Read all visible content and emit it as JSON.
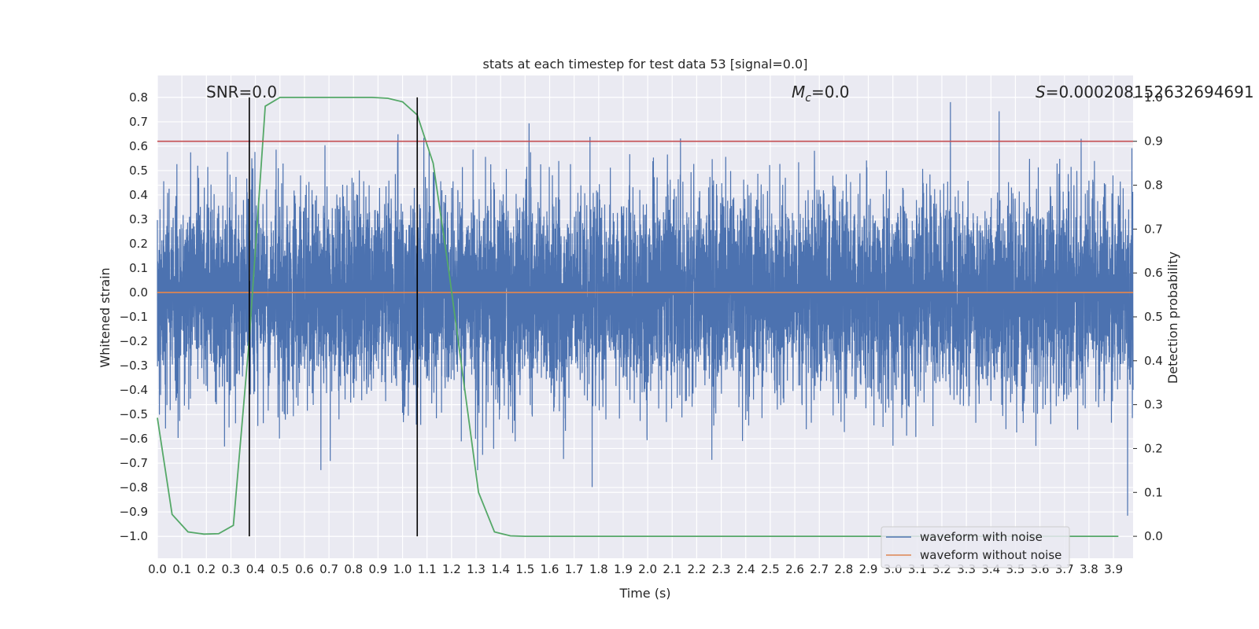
{
  "chart_data": {
    "type": "line",
    "title": "stats at each timestep for test data 53 [signal=0.0]",
    "xlabel": "Time (s)",
    "ylabel": "Whitened strain",
    "y2label": "Detection probability",
    "xlim": [
      0.0,
      3.98
    ],
    "ylim": [
      -1.09,
      0.89
    ],
    "y2lim": [
      -0.05,
      1.05
    ],
    "x_ticks": [
      "0.0",
      "0.1",
      "0.2",
      "0.3",
      "0.4",
      "0.5",
      "0.6",
      "0.7",
      "0.8",
      "0.9",
      "1.0",
      "1.1",
      "1.2",
      "1.3",
      "1.4",
      "1.5",
      "1.6",
      "1.7",
      "1.8",
      "1.9",
      "2.0",
      "2.1",
      "2.2",
      "2.3",
      "2.4",
      "2.5",
      "2.6",
      "2.7",
      "2.8",
      "2.9",
      "3.0",
      "3.1",
      "3.2",
      "3.3",
      "3.4",
      "3.5",
      "3.6",
      "3.7",
      "3.8",
      "3.9"
    ],
    "y_ticks": [
      "0.8",
      "0.7",
      "0.6",
      "0.5",
      "0.4",
      "0.3",
      "0.2",
      "0.1",
      "0.0",
      "−0.1",
      "−0.2",
      "−0.3",
      "−0.4",
      "−0.5",
      "−0.6",
      "−0.7",
      "−0.8",
      "−0.9",
      "−1.0"
    ],
    "y2_ticks": [
      "1.0",
      "0.9",
      "0.8",
      "0.7",
      "0.6",
      "0.5",
      "0.4",
      "0.3",
      "0.2",
      "0.1",
      "0.0"
    ],
    "grid": true,
    "legend_position": "lower-right",
    "legend": [
      "waveform with noise",
      "waveform without noise"
    ],
    "annotations": {
      "snr": "SNR=0.0",
      "mc_symbol": "M",
      "mc_sub": "c",
      "mc_value": "=0.0",
      "s_symbol": "S",
      "s_value": "=0.000208152632694691"
    },
    "series": [
      {
        "name": "waveform with noise",
        "color": "#4c72b0",
        "style": "noise",
        "sample_rate": 2048,
        "amplitude_sd": 0.21,
        "clip": [
          -1.0,
          0.8
        ]
      },
      {
        "name": "waveform without noise",
        "color": "#dd8452",
        "values_x": [
          0.0,
          3.98
        ],
        "values_y": [
          0.0,
          0.0
        ]
      },
      {
        "color": "#55a868",
        "axis": "right",
        "x": [
          0.0,
          0.06,
          0.125,
          0.19,
          0.25,
          0.31,
          0.375,
          0.44,
          0.5,
          0.56,
          0.625,
          0.69,
          0.75,
          0.81,
          0.875,
          0.94,
          1.0,
          1.06,
          1.125,
          1.19,
          1.25,
          1.31,
          1.375,
          1.44,
          1.5,
          1.56,
          1.625,
          1.69,
          1.75,
          1.81,
          1.875,
          1.94,
          2.0,
          2.06,
          2.125,
          2.19,
          2.25,
          2.31,
          2.375,
          2.44,
          2.5,
          2.56,
          2.625,
          2.69,
          2.75,
          2.81,
          2.875,
          2.94,
          3.0,
          3.06,
          3.125,
          3.19,
          3.25,
          3.31,
          3.375,
          3.44,
          3.5,
          3.56,
          3.625,
          3.69,
          3.75,
          3.81,
          3.875,
          3.92
        ],
        "y": [
          0.27,
          0.05,
          0.01,
          0.005,
          0.006,
          0.025,
          0.45,
          0.98,
          1.0,
          1.0,
          1.0,
          1.0,
          1.0,
          1.0,
          1.0,
          0.998,
          0.99,
          0.96,
          0.85,
          0.6,
          0.35,
          0.1,
          0.01,
          0.001,
          0.0,
          0.0,
          0.0,
          0.0,
          0.0,
          0.0,
          0.0,
          0.0,
          0.0,
          0.0,
          0.0,
          0.0,
          0.0,
          0.0,
          0.0,
          0.0,
          0.0,
          0.0,
          0.0,
          0.0,
          0.0,
          0.0,
          0.0,
          0.0,
          0.0,
          0.0,
          0.0,
          0.0,
          0.0,
          0.0,
          0.0,
          0.0,
          0.0,
          0.0,
          0.0,
          0.0,
          0.0,
          0.0,
          0.0,
          0.0
        ]
      }
    ],
    "hlines": [
      {
        "axis": "right",
        "y": 0.9,
        "color": "#c44e52"
      }
    ],
    "vlines": [
      {
        "x": 0.375,
        "y_from": -1.0,
        "y_to": 0.8,
        "color": "#000000"
      },
      {
        "x": 1.06,
        "y_from": -1.0,
        "y_to": 0.8,
        "color": "#000000"
      }
    ]
  }
}
